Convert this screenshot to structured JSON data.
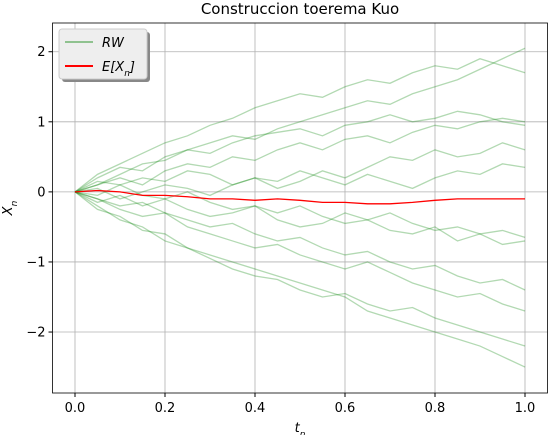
{
  "chart_data": {
    "type": "line",
    "title": "Construccion toerema Kuo",
    "xlabel": [
      "t",
      "n"
    ],
    "ylabel": [
      "X",
      "n"
    ],
    "x": [
      0,
      0.05,
      0.1,
      0.15,
      0.2,
      0.25,
      0.3,
      0.35,
      0.4,
      0.45,
      0.5,
      0.55,
      0.6,
      0.65,
      0.7,
      0.75,
      0.8,
      0.85,
      0.9,
      0.95,
      1.0
    ],
    "series": [
      {
        "name": "RW",
        "color": "green",
        "opacity": 0.3,
        "values": [
          [
            0,
            0.2,
            0.35,
            0.3,
            0.5,
            0.6,
            0.7,
            0.8,
            0.75,
            0.9,
            1.0,
            1.1,
            1.2,
            1.3,
            1.25,
            1.4,
            1.5,
            1.6,
            1.75,
            1.9,
            2.05
          ],
          [
            0,
            -0.2,
            -0.4,
            -0.5,
            -0.7,
            -0.8,
            -0.9,
            -1.0,
            -1.1,
            -1.2,
            -1.3,
            -1.4,
            -1.5,
            -1.7,
            -1.8,
            -1.9,
            -2.0,
            -2.1,
            -2.2,
            -2.35,
            -2.5
          ],
          [
            0,
            0.1,
            0.25,
            0.4,
            0.45,
            0.6,
            0.55,
            0.7,
            0.8,
            0.85,
            0.9,
            0.8,
            0.95,
            1.0,
            1.1,
            1.0,
            1.05,
            1.15,
            1.1,
            1.0,
            0.95
          ],
          [
            0,
            -0.1,
            -0.2,
            -0.15,
            -0.3,
            -0.4,
            -0.5,
            -0.45,
            -0.6,
            -0.7,
            -0.65,
            -0.8,
            -0.9,
            -0.85,
            -1.0,
            -1.1,
            -1.05,
            -1.2,
            -1.3,
            -1.25,
            -1.4
          ],
          [
            0,
            0.15,
            0.1,
            0.2,
            0.15,
            0.3,
            0.25,
            0.1,
            0.2,
            0.05,
            0.15,
            0.3,
            0.2,
            0.35,
            0.5,
            0.45,
            0.6,
            0.5,
            0.55,
            0.7,
            0.6
          ],
          [
            0,
            -0.15,
            -0.05,
            -0.2,
            -0.1,
            -0.25,
            -0.35,
            -0.3,
            -0.2,
            -0.4,
            -0.5,
            -0.45,
            -0.3,
            -0.4,
            -0.55,
            -0.6,
            -0.5,
            -0.7,
            -0.6,
            -0.75,
            -0.7
          ],
          [
            0,
            0.25,
            0.4,
            0.55,
            0.7,
            0.8,
            0.95,
            1.05,
            1.2,
            1.3,
            1.4,
            1.35,
            1.5,
            1.6,
            1.55,
            1.7,
            1.8,
            1.75,
            1.9,
            1.8,
            1.7
          ],
          [
            0,
            -0.25,
            -0.35,
            -0.55,
            -0.6,
            -0.8,
            -0.95,
            -1.1,
            -1.2,
            -1.25,
            -1.4,
            -1.5,
            -1.45,
            -1.6,
            -1.7,
            -1.65,
            -1.8,
            -1.9,
            -2.0,
            -2.1,
            -2.2
          ],
          [
            0,
            0.05,
            -0.1,
            0.0,
            0.1,
            0.05,
            -0.05,
            0.1,
            0.2,
            0.15,
            0.3,
            0.2,
            0.1,
            0.25,
            0.15,
            0.05,
            0.2,
            0.3,
            0.25,
            0.4,
            0.35
          ],
          [
            0,
            -0.05,
            0.1,
            -0.05,
            -0.1,
            0.0,
            -0.15,
            -0.25,
            -0.2,
            -0.3,
            -0.2,
            -0.35,
            -0.45,
            -0.4,
            -0.3,
            -0.45,
            -0.55,
            -0.5,
            -0.6,
            -0.55,
            -0.65
          ],
          [
            0,
            0.1,
            0.2,
            0.1,
            0.3,
            0.4,
            0.35,
            0.5,
            0.45,
            0.6,
            0.7,
            0.6,
            0.75,
            0.8,
            0.7,
            0.85,
            0.95,
            0.9,
            1.0,
            1.05,
            1.0
          ],
          [
            0,
            -0.1,
            -0.25,
            -0.35,
            -0.3,
            -0.5,
            -0.6,
            -0.7,
            -0.8,
            -0.75,
            -0.9,
            -1.0,
            -1.1,
            -1.0,
            -1.15,
            -1.3,
            -1.4,
            -1.5,
            -1.45,
            -1.6,
            -1.7
          ]
        ]
      },
      {
        "name": [
          "E[X",
          "n",
          "]"
        ],
        "color": "red",
        "opacity": 1,
        "values": [
          0,
          0.02,
          0.0,
          -0.05,
          -0.05,
          -0.07,
          -0.1,
          -0.1,
          -0.12,
          -0.1,
          -0.12,
          -0.15,
          -0.15,
          -0.17,
          -0.17,
          -0.15,
          -0.12,
          -0.1,
          -0.1,
          -0.1,
          -0.1
        ]
      }
    ],
    "xlim": [
      -0.05,
      1.05
    ],
    "ylim": [
      -2.87,
      2.41
    ],
    "xticks": [
      {
        "value": 0,
        "label": "0.0"
      },
      {
        "value": 0.2,
        "label": "0.2"
      },
      {
        "value": 0.4,
        "label": "0.4"
      },
      {
        "value": 0.6,
        "label": "0.6"
      },
      {
        "value": 0.8,
        "label": "0.8"
      },
      {
        "value": 1.0,
        "label": "1.0"
      }
    ],
    "yticks": [
      {
        "value": -2,
        "label": "−2"
      },
      {
        "value": -1,
        "label": "−1"
      },
      0,
      1,
      2
    ],
    "grid": true,
    "legend": "upper left"
  }
}
